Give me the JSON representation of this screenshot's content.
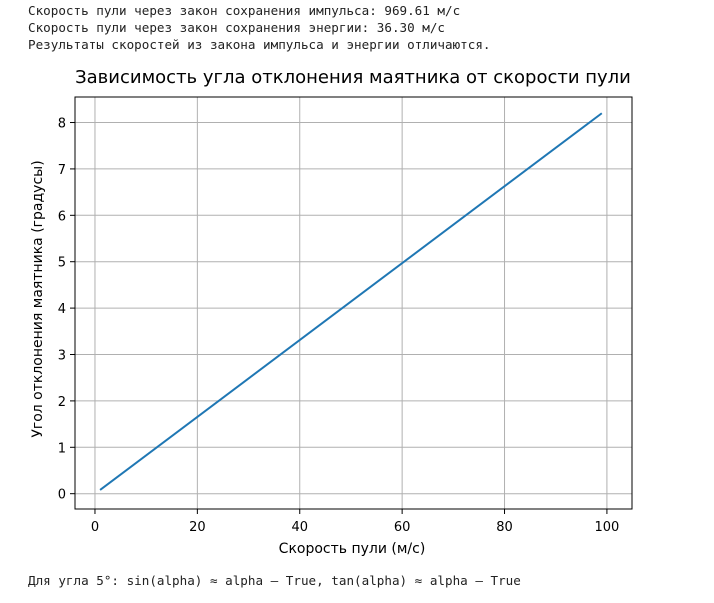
{
  "output": {
    "line1": "Скорость пули через закон сохранения импульса: 969.61 м/с",
    "line2": "Скорость пули через закон сохранения энергии: 36.30 м/с",
    "line3": "Результаты скоростей из закона импульса и энергии отличаются.",
    "footer": "Для угла 5°: sin(alpha) ≈ alpha — True, tan(alpha) ≈ alpha — True"
  },
  "chart_data": {
    "type": "line",
    "title": "Зависимость угла отклонения маятника от скорости пули",
    "xlabel": "Скорость пули (м/с)",
    "ylabel": "Угол отклонения маятника (градусы)",
    "xlim": [
      -3.9,
      104.9
    ],
    "ylim": [
      -0.33,
      8.55
    ],
    "xticks": [
      0,
      20,
      40,
      60,
      80,
      100
    ],
    "yticks": [
      0,
      1,
      2,
      3,
      4,
      5,
      6,
      7,
      8
    ],
    "grid": true,
    "series": [
      {
        "color": "#1f77b4",
        "x": [
          1,
          99
        ],
        "y": [
          0.08,
          8.2
        ]
      }
    ]
  }
}
